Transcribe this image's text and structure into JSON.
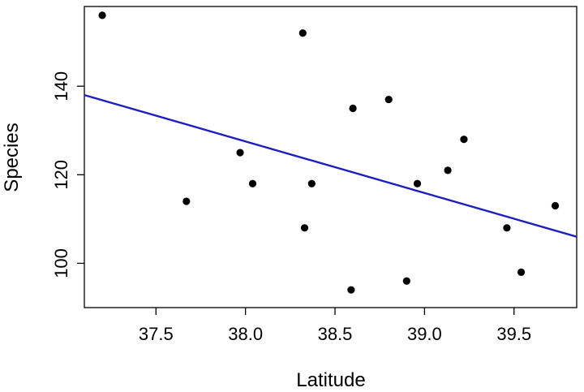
{
  "chart_data": {
    "type": "scatter",
    "title": "",
    "xlabel": "Latitude",
    "ylabel": "Species",
    "xlim": [
      37.1,
      39.85
    ],
    "ylim": [
      90,
      158
    ],
    "grid": false,
    "x_ticks": [
      37.5,
      38.0,
      38.5,
      39.0,
      39.5
    ],
    "x_tick_labels": [
      "37.5",
      "38.0",
      "38.5",
      "39.0",
      "39.5"
    ],
    "y_ticks": [
      100,
      120,
      140
    ],
    "y_tick_labels": [
      "100",
      "120",
      "140"
    ],
    "series": [
      {
        "kind": "points",
        "color": "#000000",
        "points": [
          {
            "x": 37.2,
            "y": 156
          },
          {
            "x": 37.67,
            "y": 114
          },
          {
            "x": 37.97,
            "y": 125
          },
          {
            "x": 38.04,
            "y": 118
          },
          {
            "x": 38.32,
            "y": 152
          },
          {
            "x": 38.33,
            "y": 108
          },
          {
            "x": 38.37,
            "y": 118
          },
          {
            "x": 38.59,
            "y": 94
          },
          {
            "x": 38.6,
            "y": 135
          },
          {
            "x": 38.8,
            "y": 137
          },
          {
            "x": 38.9,
            "y": 96
          },
          {
            "x": 38.96,
            "y": 118
          },
          {
            "x": 39.13,
            "y": 121
          },
          {
            "x": 39.22,
            "y": 128
          },
          {
            "x": 39.46,
            "y": 108
          },
          {
            "x": 39.54,
            "y": 98
          },
          {
            "x": 39.73,
            "y": 113
          }
        ]
      },
      {
        "kind": "regression-line",
        "color": "#1f1fbf",
        "points": [
          {
            "x": 37.1,
            "y": 138
          },
          {
            "x": 39.85,
            "y": 106
          }
        ]
      }
    ]
  }
}
